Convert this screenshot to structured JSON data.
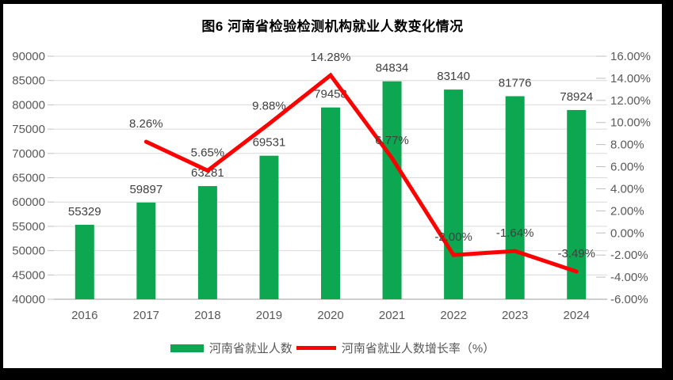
{
  "frame": {
    "border_color": "#000000",
    "canvas_background": "#FFFFFF"
  },
  "chart_data": {
    "type": "bar",
    "subtype": "combo-bar-line",
    "title": "图6  河南省检验检测机构就业人数变化情况",
    "categories": [
      "2016",
      "2017",
      "2018",
      "2019",
      "2020",
      "2021",
      "2022",
      "2023",
      "2024"
    ],
    "series": [
      {
        "name": "河南省就业人数",
        "type": "bar",
        "axis": "left",
        "color": "#0CA750",
        "values": [
          55329,
          59897,
          63281,
          69531,
          79458,
          84834,
          83140,
          81776,
          78924
        ],
        "labels": [
          "55329",
          "59897",
          "63281",
          "69531",
          "79458",
          "84834",
          "83140",
          "81776",
          "78924"
        ]
      },
      {
        "name": "河南省就业人数增长率（%）",
        "type": "line",
        "axis": "right",
        "color": "#FF0000",
        "values": [
          null,
          8.26,
          5.65,
          9.88,
          14.28,
          6.77,
          -2.0,
          -1.64,
          -3.49
        ],
        "labels": [
          "",
          "8.26%",
          "5.65%",
          "9.88%",
          "14.28%",
          "6.77%",
          "-2.00%",
          "-1.64%",
          "-3.49%"
        ]
      }
    ],
    "left_axis": {
      "min": 40000,
      "max": 90000,
      "step": 5000,
      "tick_labels": [
        "90000",
        "85000",
        "80000",
        "75000",
        "70000",
        "65000",
        "60000",
        "55000",
        "50000",
        "45000",
        "40000"
      ]
    },
    "right_axis": {
      "min": -6,
      "max": 16,
      "step": 2,
      "tick_labels": [
        "16.00%",
        "14.00%",
        "12.00%",
        "10.00%",
        "8.00%",
        "6.00%",
        "4.00%",
        "2.00%",
        "0.00%",
        "-2.00%",
        "-4.00%",
        "-6.00%"
      ]
    },
    "grid": true,
    "legend_position": "bottom"
  },
  "legend": {
    "items": [
      {
        "label": "河南省就业人数",
        "swatch": "bar",
        "color": "#0CA750"
      },
      {
        "label": "河南省就业人数增长率（%）",
        "swatch": "line",
        "color": "#FF0000"
      }
    ]
  },
  "colors": {
    "bar": "#0CA750",
    "line": "#FF0000",
    "gridline": "#D9D9D9",
    "axis_line": "#BFBFBF",
    "tick_label": "#595959",
    "data_label": "#404040",
    "title": "#000000"
  }
}
